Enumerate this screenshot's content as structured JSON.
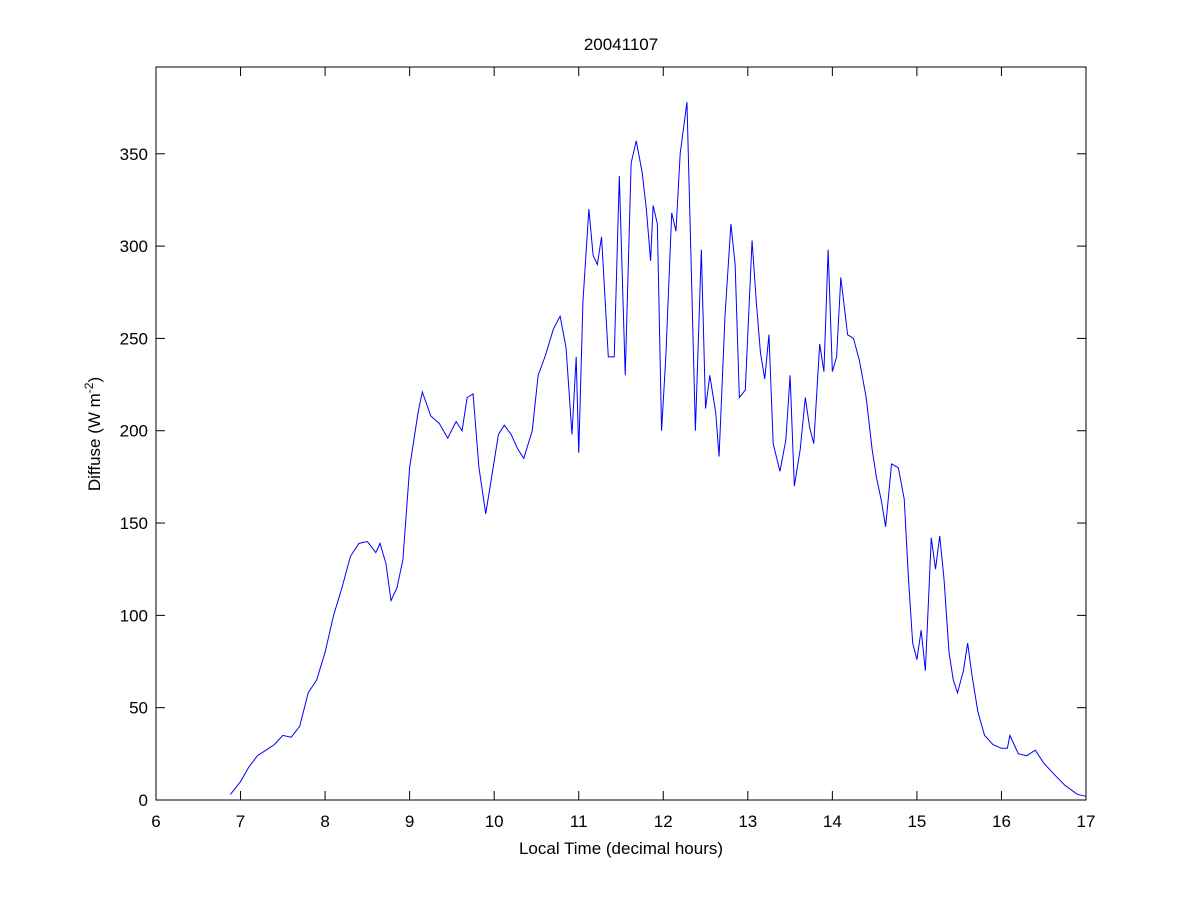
{
  "chart_data": {
    "type": "line",
    "title": "20041107",
    "xlabel": "Local Time (decimal hours)",
    "ylabel_parts": [
      "Diffuse (W m",
      "-2",
      ")"
    ],
    "xlim": [
      6,
      17
    ],
    "ylim": [
      0,
      397
    ],
    "xticks": [
      6,
      7,
      8,
      9,
      10,
      11,
      12,
      13,
      14,
      15,
      16,
      17
    ],
    "yticks": [
      0,
      50,
      100,
      150,
      200,
      250,
      300,
      350
    ],
    "grid": false,
    "series": [
      {
        "color": "#0000ff",
        "x": [
          6.88,
          7.0,
          7.1,
          7.2,
          7.3,
          7.4,
          7.5,
          7.6,
          7.7,
          7.8,
          7.9,
          8.0,
          8.1,
          8.2,
          8.3,
          8.4,
          8.5,
          8.6,
          8.65,
          8.72,
          8.78,
          8.85,
          8.92,
          9.0,
          9.1,
          9.15,
          9.25,
          9.35,
          9.45,
          9.55,
          9.62,
          9.68,
          9.75,
          9.82,
          9.9,
          9.97,
          10.05,
          10.12,
          10.2,
          10.28,
          10.35,
          10.45,
          10.52,
          10.6,
          10.7,
          10.78,
          10.85,
          10.92,
          10.97,
          11.0,
          11.05,
          11.12,
          11.17,
          11.22,
          11.27,
          11.35,
          11.42,
          11.48,
          11.55,
          11.62,
          11.68,
          11.75,
          11.8,
          11.85,
          11.88,
          11.93,
          11.98,
          12.03,
          12.1,
          12.15,
          12.2,
          12.28,
          12.33,
          12.38,
          12.45,
          12.5,
          12.55,
          12.62,
          12.66,
          12.73,
          12.8,
          12.85,
          12.9,
          12.97,
          13.05,
          13.1,
          13.15,
          13.2,
          13.25,
          13.3,
          13.38,
          13.45,
          13.5,
          13.55,
          13.62,
          13.68,
          13.73,
          13.78,
          13.85,
          13.9,
          13.95,
          14.0,
          14.05,
          14.1,
          14.18,
          14.25,
          14.32,
          14.4,
          14.47,
          14.52,
          14.58,
          14.63,
          14.7,
          14.78,
          14.85,
          14.9,
          14.95,
          15.0,
          15.05,
          15.1,
          15.17,
          15.22,
          15.27,
          15.32,
          15.38,
          15.43,
          15.48,
          15.55,
          15.6,
          15.65,
          15.72,
          15.8,
          15.9,
          16.0,
          16.07,
          16.1,
          16.2,
          16.3,
          16.4,
          16.5,
          16.6,
          16.75,
          16.9,
          17.0
        ],
        "values": [
          3,
          10,
          18,
          24,
          27,
          30,
          35,
          34,
          40,
          58,
          65,
          80,
          100,
          115,
          132,
          139,
          140,
          134,
          139,
          128,
          108,
          115,
          130,
          180,
          210,
          221,
          208,
          204,
          196,
          205,
          200,
          218,
          220,
          180,
          155,
          175,
          198,
          203,
          198,
          190,
          185,
          200,
          230,
          240,
          255,
          262,
          245,
          198,
          240,
          188,
          270,
          320,
          295,
          290,
          305,
          240,
          240,
          338,
          230,
          345,
          357,
          340,
          320,
          292,
          322,
          312,
          200,
          240,
          318,
          308,
          350,
          378,
          290,
          200,
          298,
          212,
          230,
          210,
          186,
          262,
          312,
          290,
          218,
          222,
          303,
          270,
          242,
          228,
          252,
          193,
          178,
          195,
          230,
          170,
          190,
          218,
          202,
          193,
          247,
          232,
          298,
          232,
          240,
          283,
          252,
          250,
          238,
          218,
          190,
          175,
          162,
          148,
          182,
          180,
          163,
          120,
          85,
          76,
          92,
          70,
          142,
          125,
          143,
          120,
          80,
          65,
          58,
          70,
          85,
          68,
          48,
          35,
          30,
          28,
          28,
          35,
          25,
          24,
          27,
          20,
          15,
          8,
          3,
          2
        ]
      }
    ]
  }
}
